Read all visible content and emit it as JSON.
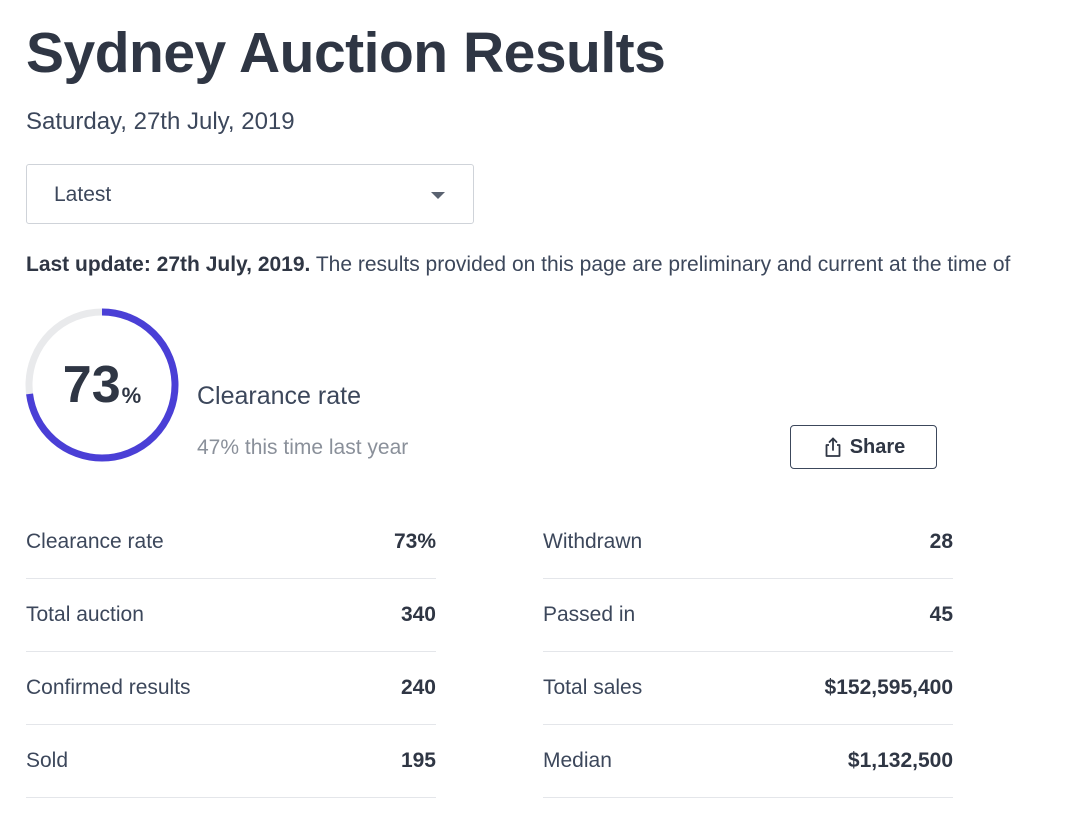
{
  "page": {
    "title": "Sydney Auction Results",
    "date": "Saturday, 27th July, 2019"
  },
  "filter": {
    "selected": "Latest"
  },
  "update": {
    "prefix": "Last update: 27th July, 2019.",
    "text": "The results provided on this page are preliminary and current at the time of"
  },
  "clearance": {
    "value": "73",
    "unit": "%",
    "fraction": 0.73,
    "label": "Clearance rate",
    "last_year": "47% this time last year",
    "ring_color": "#4a3fd6",
    "track_color": "#e9eaec"
  },
  "share": {
    "label": "Share",
    "icon": "share-icon"
  },
  "stats_left": [
    {
      "label": "Clearance rate",
      "value": "73%"
    },
    {
      "label": "Total auction",
      "value": "340"
    },
    {
      "label": "Confirmed results",
      "value": "240"
    },
    {
      "label": "Sold",
      "value": "195"
    }
  ],
  "stats_right": [
    {
      "label": "Withdrawn",
      "value": "28"
    },
    {
      "label": "Passed in",
      "value": "45"
    },
    {
      "label": "Total sales",
      "value": "$152,595,400"
    },
    {
      "label": "Median",
      "value": "$1,132,500"
    }
  ]
}
